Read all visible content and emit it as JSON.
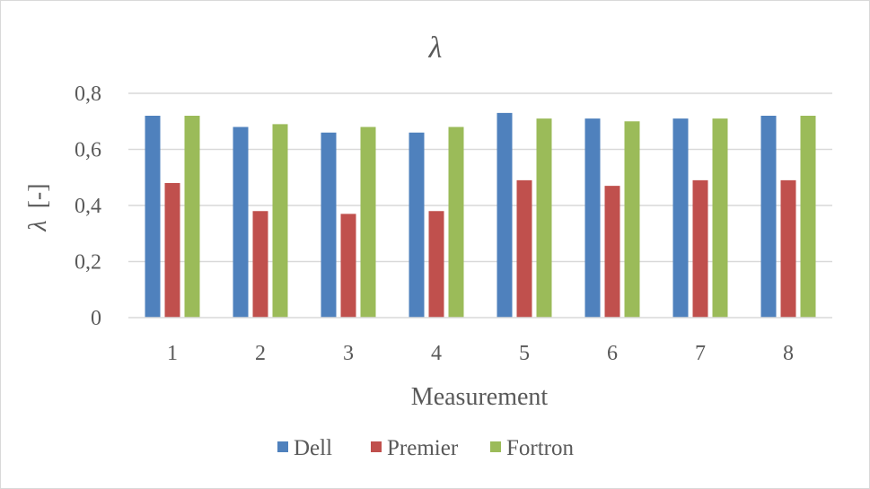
{
  "chart_data": {
    "type": "bar",
    "title": "λ",
    "xlabel": "Measurement",
    "ylabel_symbol": "λ",
    "ylabel_unit": "[-]",
    "categories": [
      "1",
      "2",
      "3",
      "4",
      "5",
      "6",
      "7",
      "8"
    ],
    "series": [
      {
        "name": "Dell",
        "color": "#4f81bd",
        "values": [
          0.72,
          0.68,
          0.66,
          0.66,
          0.73,
          0.71,
          0.71,
          0.72
        ]
      },
      {
        "name": "Premier",
        "color": "#c0504d",
        "values": [
          0.48,
          0.38,
          0.37,
          0.38,
          0.49,
          0.47,
          0.49,
          0.49
        ]
      },
      {
        "name": "Fortron",
        "color": "#9bbb59",
        "values": [
          0.72,
          0.69,
          0.68,
          0.68,
          0.71,
          0.7,
          0.71,
          0.72
        ]
      }
    ],
    "ylim": [
      0,
      0.8
    ],
    "yticks": [
      0,
      0.2,
      0.4,
      0.6,
      0.8
    ],
    "ytick_labels": [
      "0",
      "0,2",
      "0,4",
      "0,6",
      "0,8"
    ],
    "grid": true,
    "legend": "bottom"
  }
}
